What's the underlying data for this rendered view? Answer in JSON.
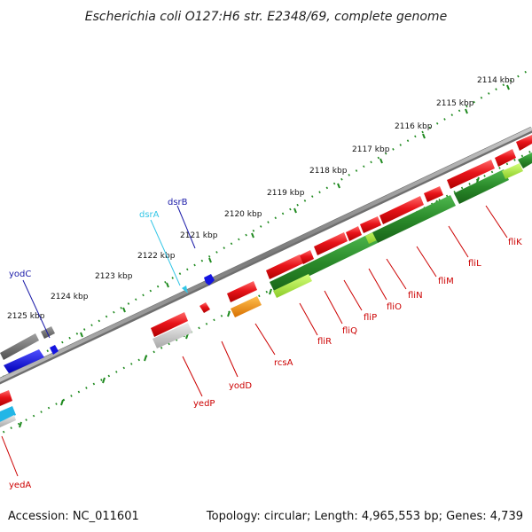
{
  "title": "Escherichia coli O127:H6 str. E2348/69, complete genome",
  "footer": {
    "accession": "Accession: NC_011601",
    "summary": "Topology: circular; Length: 4,965,553 bp; Genes: 4,739"
  },
  "scale_labels": [
    "2114 kbp",
    "2115 kbp",
    "2116 kbp",
    "2117 kbp",
    "2118 kbp",
    "2119 kbp",
    "2120 kbp",
    "2121 kbp",
    "2122 kbp",
    "2123 kbp",
    "2124 kbp",
    "2125 kbp"
  ],
  "gene_labels": [
    {
      "name": "yodC",
      "color": "#1a1aa8"
    },
    {
      "name": "dsrA",
      "color": "#33c6e6"
    },
    {
      "name": "dsrB",
      "color": "#1a1aa8"
    },
    {
      "name": "yedA",
      "color": "#cc0000"
    },
    {
      "name": "yedP",
      "color": "#cc0000"
    },
    {
      "name": "yodD",
      "color": "#cc0000"
    },
    {
      "name": "rcsA",
      "color": "#cc0000"
    },
    {
      "name": "fliR",
      "color": "#cc0000"
    },
    {
      "name": "fliQ",
      "color": "#cc0000"
    },
    {
      "name": "fliP",
      "color": "#cc0000"
    },
    {
      "name": "fliO",
      "color": "#cc0000"
    },
    {
      "name": "fliN",
      "color": "#cc0000"
    },
    {
      "name": "fliM",
      "color": "#cc0000"
    },
    {
      "name": "fliL",
      "color": "#cc0000"
    },
    {
      "name": "fliK",
      "color": "#cc0000"
    }
  ],
  "colors": {
    "backbone": "#8a8a8a",
    "tick_dots": "#1f8a1f",
    "gene_red": "#e8141a",
    "gene_green": "#2a8a2a",
    "gene_lightgreen": "#a6e63c",
    "gene_blue": "#1414e0",
    "gene_gray": "#6e6e6e",
    "gene_orange": "#f08c14",
    "gene_cyan": "#22b6e6"
  }
}
